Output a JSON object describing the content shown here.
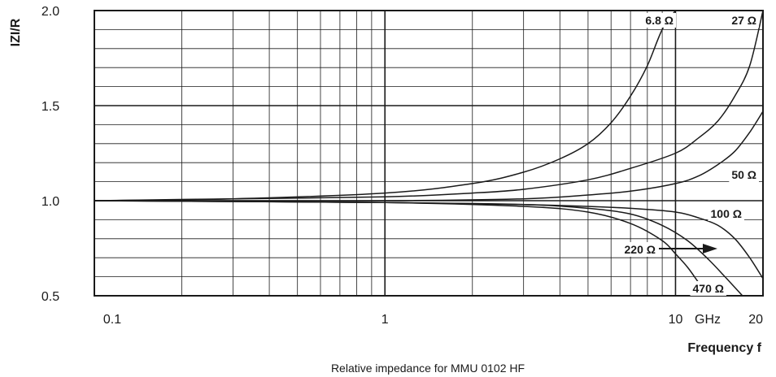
{
  "chart_data": {
    "type": "line",
    "caption": "Relative impedance for MMU 0102 HF",
    "xlabel": "Frequency f",
    "ylabel": "IZI/R",
    "x_scale": "log",
    "xlim": [
      0.1,
      20
    ],
    "ylim": [
      0.5,
      2.0
    ],
    "grid": true,
    "x_ticks": [
      {
        "value": 0.1,
        "label": "0.1"
      },
      {
        "value": 1,
        "label": "1"
      },
      {
        "value": 10,
        "label": "10"
      },
      {
        "value": 20,
        "label": "20"
      }
    ],
    "x_unit_label": "GHz",
    "y_ticks": [
      {
        "value": 2.0,
        "label": "2.0"
      },
      {
        "value": 1.5,
        "label": "1.5"
      },
      {
        "value": 1.0,
        "label": "1.0"
      },
      {
        "value": 0.5,
        "label": "0.5"
      }
    ],
    "series": [
      {
        "name": "6.8 Ω",
        "x": [
          0.1,
          0.3,
          1,
          2,
          3,
          4,
          5,
          6,
          7,
          8,
          9,
          10
        ],
        "y": [
          1.0,
          1.01,
          1.04,
          1.09,
          1.15,
          1.22,
          1.3,
          1.41,
          1.55,
          1.71,
          1.9,
          2.0
        ]
      },
      {
        "name": "27 Ω",
        "x": [
          0.1,
          0.3,
          1,
          2,
          3,
          5,
          7,
          10,
          12,
          14,
          16,
          18,
          20
        ],
        "y": [
          1.0,
          1.01,
          1.02,
          1.04,
          1.06,
          1.11,
          1.17,
          1.25,
          1.33,
          1.42,
          1.55,
          1.71,
          2.0
        ]
      },
      {
        "name": "50 Ω",
        "x": [
          0.1,
          1,
          3,
          5,
          7,
          10,
          12,
          14,
          16,
          18,
          20
        ],
        "y": [
          1.0,
          1.0,
          1.01,
          1.03,
          1.05,
          1.09,
          1.13,
          1.19,
          1.26,
          1.36,
          1.47
        ]
      },
      {
        "name": "100 Ω",
        "x": [
          0.1,
          1,
          3,
          5,
          7,
          10,
          12,
          14,
          16,
          18,
          20
        ],
        "y": [
          1.0,
          0.99,
          0.98,
          0.97,
          0.96,
          0.94,
          0.91,
          0.87,
          0.8,
          0.7,
          0.59
        ]
      },
      {
        "name": "220 Ω",
        "x": [
          0.1,
          1,
          3,
          5,
          7,
          9,
          11,
          13,
          15,
          17
        ],
        "y": [
          1.0,
          0.99,
          0.98,
          0.96,
          0.93,
          0.87,
          0.79,
          0.69,
          0.59,
          0.5
        ]
      },
      {
        "name": "470 Ω",
        "x": [
          0.1,
          1,
          3,
          5,
          7,
          9,
          10,
          11,
          12,
          13
        ],
        "y": [
          1.0,
          0.99,
          0.97,
          0.94,
          0.88,
          0.79,
          0.72,
          0.65,
          0.57,
          0.5
        ]
      }
    ]
  }
}
